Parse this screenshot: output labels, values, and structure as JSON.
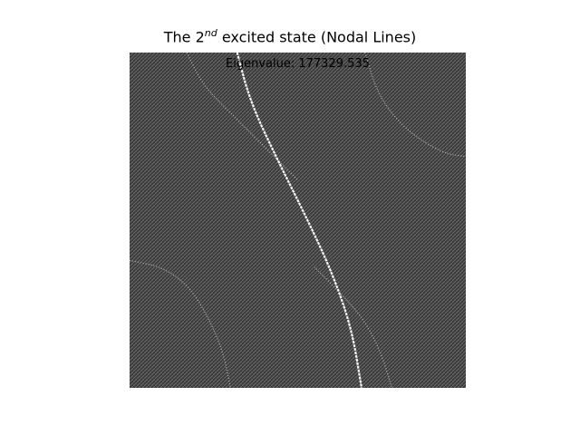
{
  "chart_data": {
    "type": "heatmap",
    "title": {
      "prefix": "The 2",
      "superscript": "nd",
      "suffix": " excited state (Nodal Lines)"
    },
    "annotation": "Eigenvalue: 177329.535",
    "grid": false,
    "colormap": "gray",
    "colors": {
      "background": "#3b3b3b",
      "texture": "#6e6e6e",
      "nodal_line": "#ffffff"
    },
    "nodal_lines": [
      {
        "name": "main",
        "points": [
          [
            0.32,
            1.0
          ],
          [
            0.36,
            0.85
          ],
          [
            0.44,
            0.68
          ],
          [
            0.52,
            0.52
          ],
          [
            0.6,
            0.35
          ],
          [
            0.66,
            0.18
          ],
          [
            0.69,
            0.0
          ]
        ]
      },
      {
        "name": "upper-left",
        "points": [
          [
            0.17,
            1.0
          ],
          [
            0.22,
            0.9
          ],
          [
            0.3,
            0.82
          ],
          [
            0.4,
            0.72
          ],
          [
            0.5,
            0.62
          ]
        ]
      },
      {
        "name": "upper-right",
        "points": [
          [
            0.7,
            1.0
          ],
          [
            0.74,
            0.87
          ],
          [
            0.82,
            0.77
          ],
          [
            0.93,
            0.7
          ],
          [
            1.0,
            0.69
          ]
        ]
      },
      {
        "name": "lower-left",
        "points": [
          [
            0.0,
            0.38
          ],
          [
            0.1,
            0.36
          ],
          [
            0.18,
            0.3
          ],
          [
            0.24,
            0.2
          ],
          [
            0.28,
            0.1
          ],
          [
            0.3,
            0.0
          ]
        ]
      },
      {
        "name": "lower-right",
        "points": [
          [
            0.55,
            0.36
          ],
          [
            0.63,
            0.28
          ],
          [
            0.7,
            0.2
          ],
          [
            0.75,
            0.1
          ],
          [
            0.78,
            0.0
          ]
        ]
      }
    ]
  }
}
